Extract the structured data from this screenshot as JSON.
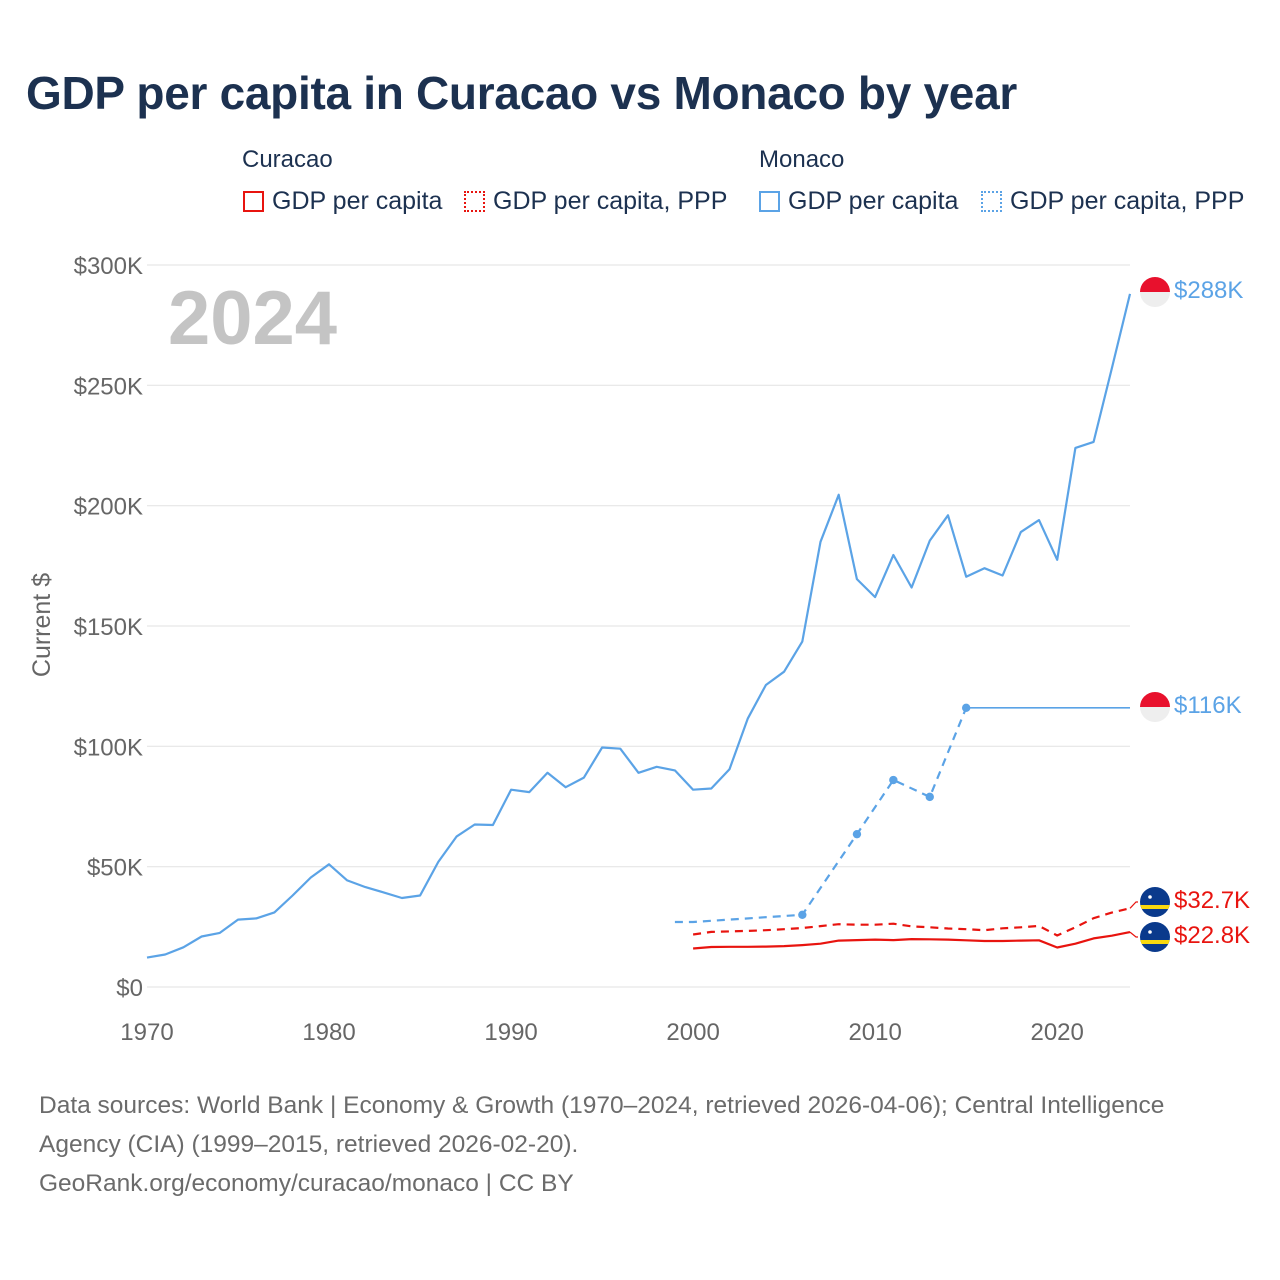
{
  "title": "GDP per capita in Curacao vs Monaco by year",
  "legend": {
    "groups": [
      {
        "name": "Curacao",
        "items": [
          {
            "label": "GDP per capita",
            "style": "solid",
            "color": "#e8140f"
          },
          {
            "label": "GDP per capita, PPP",
            "style": "dotted",
            "color": "#e8140f"
          }
        ]
      },
      {
        "name": "Monaco",
        "items": [
          {
            "label": "GDP per capita",
            "style": "solid",
            "color": "#5ba3e6"
          },
          {
            "label": "GDP per capita, PPP",
            "style": "dotted",
            "color": "#5ba3e6"
          }
        ]
      }
    ]
  },
  "year_label": "2024",
  "colors": {
    "curacao": "#e8140f",
    "monaco": "#5ba3e6",
    "grid": "#e6e6e6",
    "axis_text": "#666666",
    "year": "#c4c4c4",
    "title": "#1c3150"
  },
  "chart_data": {
    "type": "line",
    "title": "GDP per capita in Curacao vs Monaco by year",
    "xlabel": "",
    "ylabel": "Current $",
    "xlim": [
      1970,
      2024
    ],
    "ylim": [
      0,
      300000
    ],
    "x_ticks": [
      1970,
      1980,
      1990,
      2000,
      2010,
      2020
    ],
    "x_tick_labels": [
      "1970",
      "1980",
      "1990",
      "2000",
      "2010",
      "2020"
    ],
    "y_ticks": [
      0,
      50000,
      100000,
      150000,
      200000,
      250000,
      300000
    ],
    "y_tick_labels": [
      "$0",
      "$50K",
      "$100K",
      "$150K",
      "$200K",
      "$250K",
      "$300K"
    ],
    "series": [
      {
        "name": "Monaco GDP per capita",
        "country": "Monaco",
        "metric": "GDP per capita",
        "style": "solid",
        "color": "#5ba3e6",
        "end_label": "$288K",
        "x": [
          1970,
          1971,
          1972,
          1973,
          1974,
          1975,
          1976,
          1977,
          1978,
          1979,
          1980,
          1981,
          1982,
          1983,
          1984,
          1985,
          1986,
          1987,
          1988,
          1989,
          1990,
          1991,
          1992,
          1993,
          1994,
          1995,
          1996,
          1997,
          1998,
          1999,
          2000,
          2001,
          2002,
          2003,
          2004,
          2005,
          2006,
          2007,
          2008,
          2009,
          2010,
          2011,
          2012,
          2013,
          2014,
          2015,
          2016,
          2017,
          2018,
          2019,
          2020,
          2021,
          2022,
          2023,
          2024
        ],
        "values": [
          12200,
          13500,
          16500,
          21000,
          22500,
          28000,
          28500,
          31000,
          38000,
          45500,
          51000,
          44300,
          41500,
          39300,
          37000,
          38000,
          52000,
          62500,
          67500,
          67300,
          82000,
          81000,
          89000,
          83000,
          87000,
          99500,
          99000,
          89000,
          91500,
          90000,
          82000,
          82500,
          90500,
          111500,
          125500,
          131000,
          143500,
          185000,
          204500,
          169500,
          162000,
          179500,
          166000,
          185500,
          196000,
          170500,
          174000,
          171000,
          189000,
          194000,
          177500,
          224000,
          226500,
          257000,
          288000
        ]
      },
      {
        "name": "Monaco GDP per capita, PPP",
        "country": "Monaco",
        "metric": "GDP per capita, PPP",
        "style": "dotted",
        "color": "#5ba3e6",
        "end_label": "$116K",
        "x": [
          1999,
          2000,
          2006,
          2009,
          2011,
          2013,
          2015
        ],
        "values": [
          27000,
          27000,
          30000,
          63500,
          86000,
          79000,
          116000
        ],
        "markers": [
          2006,
          2009,
          2011,
          2013,
          2015
        ],
        "extended_to": 2024
      },
      {
        "name": "Curacao GDP per capita",
        "country": "Curacao",
        "metric": "GDP per capita",
        "style": "solid",
        "color": "#e8140f",
        "end_label": "$22.8K",
        "x": [
          2000,
          2001,
          2002,
          2003,
          2004,
          2005,
          2006,
          2007,
          2008,
          2009,
          2010,
          2011,
          2012,
          2013,
          2014,
          2015,
          2016,
          2017,
          2018,
          2019,
          2020,
          2021,
          2022,
          2023,
          2024
        ],
        "values": [
          16000,
          16600,
          16700,
          16700,
          16800,
          17000,
          17400,
          18000,
          19300,
          19500,
          19700,
          19500,
          19900,
          19800,
          19700,
          19400,
          19100,
          19100,
          19300,
          19400,
          16400,
          18000,
          20200,
          21300,
          22800
        ]
      },
      {
        "name": "Curacao GDP per capita, PPP",
        "country": "Curacao",
        "metric": "GDP per capita, PPP",
        "style": "dotted",
        "color": "#e8140f",
        "end_label": "$32.7K",
        "x": [
          2000,
          2001,
          2002,
          2003,
          2004,
          2005,
          2006,
          2007,
          2008,
          2009,
          2010,
          2011,
          2012,
          2013,
          2014,
          2015,
          2016,
          2017,
          2018,
          2019,
          2020,
          2021,
          2022,
          2023,
          2024
        ],
        "values": [
          21800,
          22900,
          23100,
          23300,
          23600,
          24000,
          24500,
          25300,
          26100,
          25900,
          25900,
          26300,
          25200,
          24800,
          24300,
          24000,
          23600,
          24400,
          24800,
          25400,
          21400,
          24800,
          28600,
          30900,
          32700
        ]
      }
    ]
  },
  "sources": {
    "line1": "Data sources: World Bank | Economy & Growth (1970–2024, retrieved 2026-04-06); Central Intelligence Agency (CIA) (1999–2015, retrieved 2026-02-20).",
    "line2": "GeoRank.org/economy/curacao/monaco | CC BY"
  }
}
